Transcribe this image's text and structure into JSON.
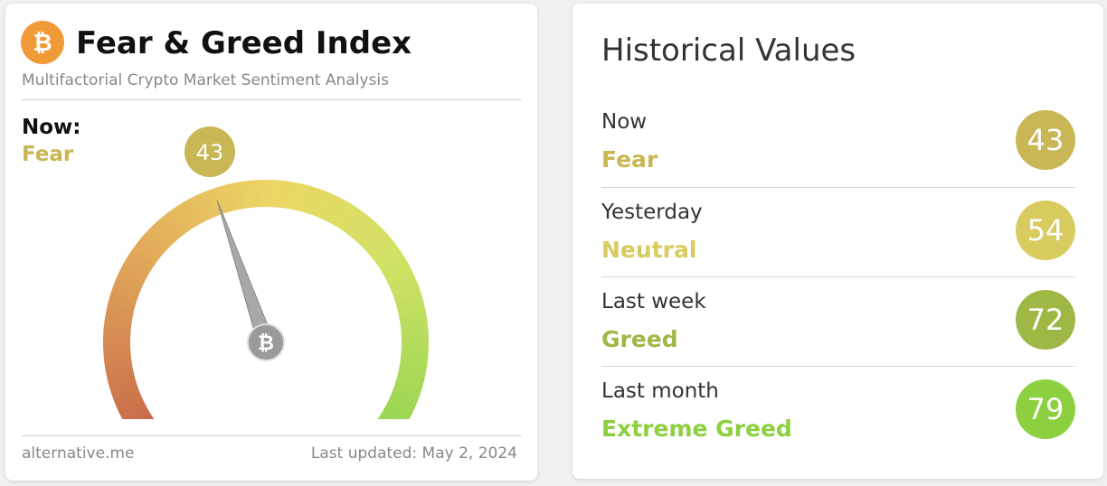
{
  "header": {
    "title": "Fear & Greed Index",
    "subtitle": "Multifactorial Crypto Market Sentiment Analysis"
  },
  "now": {
    "label": "Now:",
    "classification": "Fear",
    "value": 43,
    "color": "#c9b654"
  },
  "footer": {
    "source": "alternative.me",
    "updated": "Last updated: May 2, 2024"
  },
  "historical": {
    "title": "Historical Values",
    "rows": [
      {
        "period": "Now",
        "classification": "Fear",
        "value": 43,
        "color": "#c9b654"
      },
      {
        "period": "Yesterday",
        "classification": "Neutral",
        "value": 54,
        "color": "#d8cb5f"
      },
      {
        "period": "Last week",
        "classification": "Greed",
        "value": 72,
        "color": "#9db845"
      },
      {
        "period": "Last month",
        "classification": "Extreme Greed",
        "value": 79,
        "color": "#8ccf3f"
      }
    ]
  }
}
